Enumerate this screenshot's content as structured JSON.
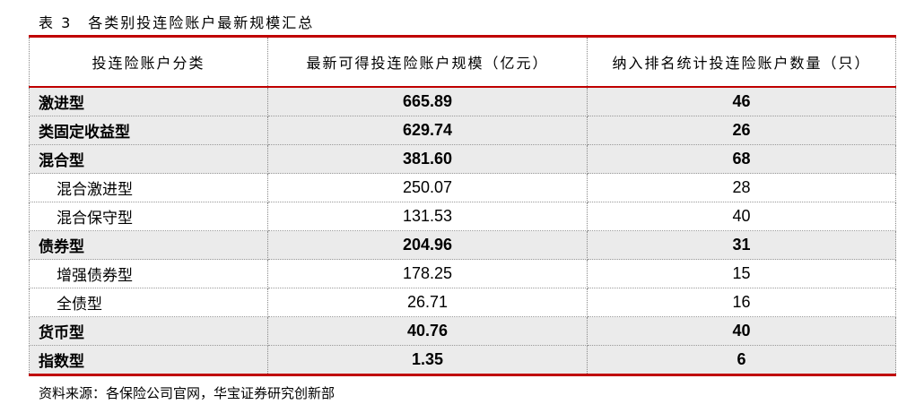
{
  "title": "表 3　各类别投连险账户最新规模汇总",
  "headers": [
    "投连险账户分类",
    "最新可得投连险账户规模（亿元）",
    "纳入排名统计投连险账户数量（只）"
  ],
  "rows": [
    {
      "category": "激进型",
      "size": "665.89",
      "count": "46",
      "level": "main"
    },
    {
      "category": "类固定收益型",
      "size": "629.74",
      "count": "26",
      "level": "main"
    },
    {
      "category": "混合型",
      "size": "381.60",
      "count": "68",
      "level": "main"
    },
    {
      "category": "混合激进型",
      "size": "250.07",
      "count": "28",
      "level": "sub"
    },
    {
      "category": "混合保守型",
      "size": "131.53",
      "count": "40",
      "level": "sub"
    },
    {
      "category": "债券型",
      "size": "204.96",
      "count": "31",
      "level": "main"
    },
    {
      "category": "增强债券型",
      "size": "178.25",
      "count": "15",
      "level": "sub"
    },
    {
      "category": "全债型",
      "size": "26.71",
      "count": "16",
      "level": "sub"
    },
    {
      "category": "货币型",
      "size": "40.76",
      "count": "40",
      "level": "main"
    },
    {
      "category": "指数型",
      "size": "1.35",
      "count": "6",
      "level": "main"
    }
  ],
  "source": "资料来源：各保险公司官网，华宝证券研究创新部",
  "colors": {
    "accent": "#c00000",
    "shade": "#ebebeb"
  }
}
